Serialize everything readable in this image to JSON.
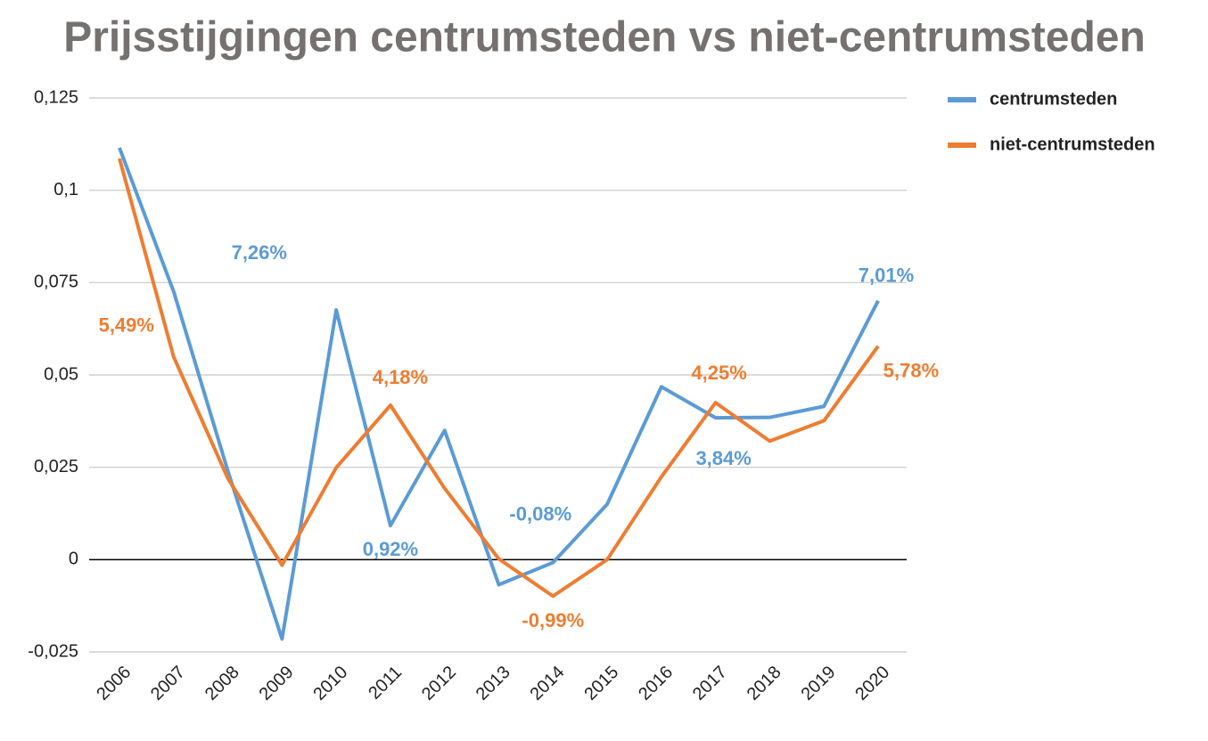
{
  "chart_data": {
    "type": "line",
    "title": "Prijsstijgingen centrumsteden vs niet-centrumsteden",
    "categories": [
      "2006",
      "2007",
      "2008",
      "2009",
      "2010",
      "2011",
      "2012",
      "2013",
      "2014",
      "2015",
      "2016",
      "2017",
      "2018",
      "2019",
      "2020"
    ],
    "series": [
      {
        "name": "centrumsteden",
        "color": "#5b9bd5",
        "values": [
          0.1115,
          0.0726,
          0.024,
          -0.0215,
          0.0676,
          0.0092,
          0.035,
          -0.0068,
          -0.0008,
          0.015,
          0.0468,
          0.0384,
          0.0385,
          0.0415,
          0.0701
        ],
        "value_labels": [
          null,
          "7,26%",
          null,
          null,
          null,
          "0,92%",
          null,
          null,
          "-0,08%",
          null,
          null,
          "3,84%",
          null,
          null,
          "7,01%"
        ]
      },
      {
        "name": "niet-centrumsteden",
        "color": "#ed7d31",
        "values": [
          0.1086,
          0.0549,
          0.022,
          -0.0015,
          0.0249,
          0.0418,
          0.0193,
          0.0002,
          -0.0099,
          0.0,
          0.0224,
          0.0425,
          0.0321,
          0.0376,
          0.0578
        ],
        "value_labels": [
          null,
          "5,49%",
          null,
          null,
          null,
          "4,18%",
          null,
          null,
          "-0,99%",
          null,
          null,
          "4,25%",
          null,
          null,
          "5,78%"
        ]
      }
    ],
    "ylim": [
      -0.025,
      0.125
    ],
    "yticks": [
      {
        "value": -0.025,
        "label": "-0,025"
      },
      0,
      {
        "value": 0.025,
        "label": "0,025"
      },
      {
        "value": 0.05,
        "label": "0,05"
      },
      {
        "value": 0.075,
        "label": "0,075"
      },
      {
        "value": 0.1,
        "label": "0,1"
      },
      {
        "value": 0.125,
        "label": "0,125"
      }
    ],
    "grid": true,
    "legend": "right"
  }
}
